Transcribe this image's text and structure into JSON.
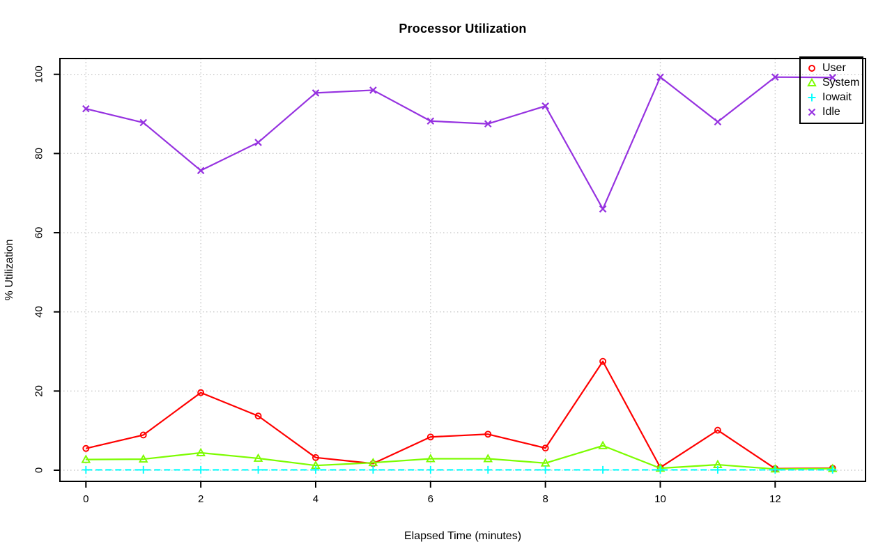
{
  "chart_data": {
    "type": "line",
    "title": "Processor Utilization",
    "xlabel": "Elapsed Time (minutes)",
    "ylabel": "% Utilization",
    "x": [
      0,
      1,
      2,
      3,
      4,
      5,
      6,
      7,
      8,
      9,
      10,
      11,
      12,
      13
    ],
    "xticks": [
      0,
      2,
      4,
      6,
      8,
      10,
      12
    ],
    "yticks": [
      0,
      20,
      40,
      60,
      80,
      100
    ],
    "xlim": [
      0,
      13
    ],
    "ylim": [
      0,
      100
    ],
    "grid": true,
    "grid_style": "dotted",
    "legend_position": "top-right",
    "series": [
      {
        "name": "User",
        "color": "#ff0000",
        "marker": "circle",
        "linestyle": "solid",
        "values": [
          5.5,
          8.9,
          19.6,
          13.7,
          3.2,
          1.7,
          8.4,
          9.1,
          5.6,
          27.5,
          0.7,
          10.1,
          0.4,
          0.5
        ]
      },
      {
        "name": "System",
        "color": "#7cfc00",
        "marker": "triangle",
        "linestyle": "solid",
        "values": [
          2.7,
          2.8,
          4.4,
          3.0,
          1.2,
          1.9,
          2.9,
          2.9,
          1.8,
          6.2,
          0.5,
          1.4,
          0.3,
          0.4
        ]
      },
      {
        "name": "Iowait",
        "color": "#00ffff",
        "marker": "plus",
        "linestyle": "dashed",
        "values": [
          0.1,
          0.1,
          0.1,
          0.1,
          0.1,
          0.1,
          0.1,
          0.1,
          0.1,
          0.1,
          0.1,
          0.1,
          0.1,
          0.1
        ]
      },
      {
        "name": "Idle",
        "color": "#9632e0",
        "marker": "x",
        "linestyle": "solid",
        "values": [
          91.3,
          87.8,
          75.7,
          82.8,
          95.3,
          96.0,
          88.2,
          87.5,
          92.0,
          66.0,
          99.3,
          88.0,
          99.3,
          99.2
        ]
      }
    ]
  },
  "colors": {
    "background": "#ffffff",
    "axis": "#000000",
    "grid": "#c8c8c8",
    "text": "#000000"
  }
}
